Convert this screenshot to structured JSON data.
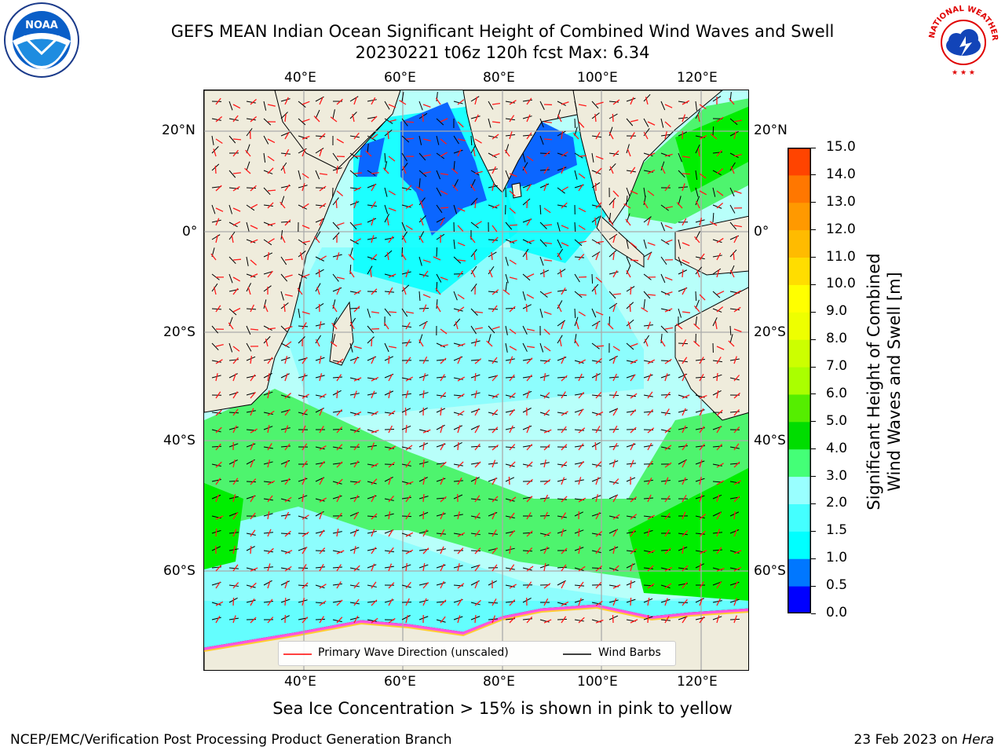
{
  "header": {
    "title_line1": "GEFS MEAN Indian Ocean Significant Height of Combined Wind Waves and Swell",
    "title_line2": "20230221 t06z 120h fcst   Max: 6.34"
  },
  "logos": {
    "noaa_text": "NOAA",
    "nws_text": "NATIONAL WEATHER SERVICE"
  },
  "map": {
    "lon_labels": [
      "40°E",
      "60°E",
      "80°E",
      "100°E",
      "120°E"
    ],
    "lat_labels": [
      "20°N",
      "0°",
      "20°S",
      "40°S",
      "60°S"
    ],
    "colors": {
      "land": "#efecdc",
      "ocean_dark_blue": "#0b66ff",
      "ocean_cyan": "#00ffff",
      "ocean_light_cyan": "#8dfdfd",
      "ocean_lighter": "#b8fffa",
      "wave_green": "#4ef46e",
      "wave_bright_green": "#00ee00",
      "grid": "#aaaaaa"
    }
  },
  "legend": {
    "primary_wave": "Primary Wave Direction (unscaled)",
    "wind_barbs": "Wind Barbs"
  },
  "colorbar": {
    "label_line1": "Significant Height of Combined",
    "label_line2": "Wind Waves and Swell [m]",
    "ticks": [
      "0.0",
      "0.5",
      "1.0",
      "1.5",
      "2.0",
      "3.0",
      "4.0",
      "5.0",
      "6.0",
      "7.0",
      "8.0",
      "9.0",
      "10.0",
      "11.0",
      "12.0",
      "13.0",
      "14.0",
      "15.0"
    ],
    "colors": [
      "#0000ff",
      "#0077ff",
      "#00ffff",
      "#44ffff",
      "#99ffff",
      "#44ff77",
      "#00dd00",
      "#55ee00",
      "#aaff00",
      "#ccff00",
      "#eeff00",
      "#ffff00",
      "#ffdd00",
      "#ffbb00",
      "#ff9900",
      "#ff7700",
      "#ff4400",
      "#ff0000"
    ]
  },
  "footer": {
    "note": "Sea Ice Concentration > 15% is shown in pink to yellow",
    "left": "NCEP/EMC/Verification Post Processing Product Generation Branch",
    "right_prefix": "23 Feb 2023 on ",
    "right_host": "Hera"
  }
}
